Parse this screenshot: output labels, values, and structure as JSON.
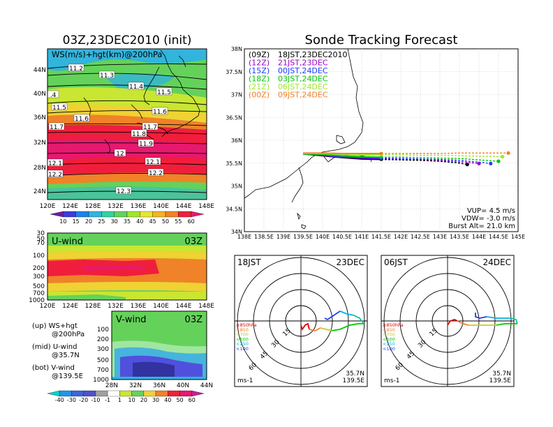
{
  "left_title": "03Z,23DEC2010 (init)",
  "right_title": "Sonde Tracking Forecast",
  "map_panel": {
    "title": "WS(m/s)+hgt(km)@200hPa",
    "lat_labels": [
      "44N",
      "40N",
      "36N",
      "32N",
      "28N",
      "24N"
    ],
    "lon_labels": [
      "120E",
      "124E",
      "128E",
      "132E",
      "136E",
      "140E",
      "144E",
      "148E"
    ],
    "contour_labels": [
      "11.2",
      "11.3",
      "11.4",
      "11.5",
      "11.5",
      "11.6",
      "11.6",
      "11.7",
      "11.7",
      "11.8",
      "11.9",
      "12",
      "12.1",
      "12.1",
      "12.2",
      "12.2",
      "12.3",
      ".4"
    ],
    "colorbar_labels": [
      "10",
      "15",
      "20",
      "25",
      "30",
      "35",
      "40",
      "45",
      "50",
      "55",
      "60"
    ]
  },
  "uwind_panel": {
    "label": "U-wind",
    "time": "03Z",
    "y_labels": [
      "30",
      "50",
      "70",
      "100",
      "200",
      "300",
      "500",
      "700",
      "1000"
    ],
    "x_labels": [
      "120E",
      "124E",
      "128E",
      "132E",
      "136E",
      "140E",
      "144E",
      "148E"
    ]
  },
  "vwind_panel": {
    "label": "V-wind",
    "time": "03Z",
    "y_labels": [
      "100",
      "200",
      "300",
      "500",
      "700",
      "1000"
    ],
    "x_labels": [
      "28N",
      "32N",
      "36N",
      "40N",
      "44N"
    ],
    "colorbar_labels": [
      "-40",
      "-30",
      "-20",
      "-10",
      "-1",
      "1",
      "10",
      "20",
      "30",
      "40",
      "50",
      "60"
    ]
  },
  "legend_notes": {
    "up1": "(up) WS+hgt",
    "up2": "@200hPa",
    "mid1": "(mid) U-wind",
    "mid2": "@35.7N",
    "bot1": "(bot) V-wind",
    "bot2": "@139.5E"
  },
  "track_panel": {
    "lat_labels": [
      "38N",
      "37.5N",
      "37N",
      "36.5N",
      "36N",
      "35.5N",
      "35N",
      "34.5N",
      "34N"
    ],
    "lon_labels": [
      "138E",
      "138.5E",
      "139E",
      "139.5E",
      "140E",
      "140.5E",
      "141E",
      "141.5E",
      "142E",
      "142.5E",
      "143E",
      "143.5E",
      "144E",
      "144.5E",
      "145E"
    ],
    "legend": [
      {
        "code": "(09Z)",
        "time": "18JST,23DEC2010",
        "color": "#000000"
      },
      {
        "code": "(12Z)",
        "time": "21JST,23DEC",
        "color": "#a000c8"
      },
      {
        "code": "(15Z)",
        "time": "00JST,24DEC",
        "color": "#1e3cff"
      },
      {
        "code": "(18Z)",
        "time": "03JST,24DEC",
        "color": "#00c800"
      },
      {
        "code": "(21Z)",
        "time": "06JST,24DEC",
        "color": "#a0e632"
      },
      {
        "code": "(00Z)",
        "time": "09JST,24DEC",
        "color": "#f08228"
      }
    ],
    "params": [
      "VUP= 4.5 m/s",
      "VDW= -3.0 m/s",
      "Burst Alt= 21.0 km"
    ]
  },
  "polar_left": {
    "time": "18JST",
    "date": "23DEC",
    "ring_labels": [
      "15",
      "30",
      "45",
      "60"
    ],
    "units": "ms-1",
    "lat": "35.7N",
    "lon": "139.5E",
    "pressure_legend": [
      "≥850hPa",
      "<850",
      "<700",
      "<500",
      "<250",
      "<100"
    ]
  },
  "polar_right": {
    "time": "06JST",
    "date": "24DEC",
    "ring_labels": [
      "15",
      "30",
      "45",
      "60"
    ],
    "units": "ms-1",
    "lat": "35.7N",
    "lon": "139.5E",
    "pressure_legend": [
      "≥850hPa",
      "<850",
      "<700",
      "<500",
      "<250",
      "<100"
    ]
  },
  "chart_data": [
    {
      "type": "line",
      "title": "Sonde Tracking Forecast",
      "xlabel": "",
      "ylabel": "",
      "xlim": [
        138,
        145
      ],
      "ylim": [
        34,
        38
      ],
      "series": [
        {
          "name": "(09Z) 18JST,23DEC2010",
          "color": "#000000",
          "x": [
            139.5,
            140.0,
            140.5,
            141.0,
            141.5,
            142.0,
            142.5,
            143.0,
            143.5,
            143.7
          ],
          "y": [
            35.7,
            35.66,
            35.62,
            35.59,
            35.58,
            35.57,
            35.56,
            35.54,
            35.5,
            35.47
          ]
        },
        {
          "name": "(12Z) 21JST,23DEC",
          "color": "#a000c8",
          "x": [
            139.5,
            140.0,
            140.5,
            141.0,
            141.5,
            142.0,
            142.5,
            143.0,
            143.5,
            144.0
          ],
          "y": [
            35.7,
            35.67,
            35.63,
            35.61,
            35.6,
            35.59,
            35.58,
            35.56,
            35.53,
            35.49
          ]
        },
        {
          "name": "(15Z) 00JST,24DEC",
          "color": "#1e3cff",
          "x": [
            139.5,
            140.0,
            140.5,
            141.0,
            141.5,
            142.0,
            142.5,
            143.0,
            143.5,
            144.0,
            144.3
          ],
          "y": [
            35.7,
            35.68,
            35.64,
            35.62,
            35.61,
            35.6,
            35.59,
            35.58,
            35.56,
            35.52,
            35.49
          ]
        },
        {
          "name": "(18Z) 03JST,24DEC",
          "color": "#00c800",
          "x": [
            139.5,
            140.0,
            140.5,
            141.0,
            141.5,
            142.0,
            142.5,
            143.0,
            143.5,
            144.0,
            144.5
          ],
          "y": [
            35.7,
            35.69,
            35.66,
            35.64,
            35.63,
            35.63,
            35.62,
            35.61,
            35.6,
            35.57,
            35.54
          ]
        },
        {
          "name": "(21Z) 06JST,24DEC",
          "color": "#a0e632",
          "x": [
            139.5,
            140.0,
            140.5,
            141.0,
            141.5,
            142.0,
            142.5,
            143.0,
            143.5,
            144.0,
            144.6
          ],
          "y": [
            35.71,
            35.71,
            35.69,
            35.68,
            35.68,
            35.68,
            35.67,
            35.67,
            35.66,
            35.65,
            35.64
          ]
        },
        {
          "name": "(00Z) 09JST,24DEC",
          "color": "#f08228",
          "x": [
            139.5,
            140.0,
            140.5,
            141.0,
            141.5,
            142.0,
            142.5,
            143.0,
            143.5,
            144.0,
            144.75
          ],
          "y": [
            35.72,
            35.72,
            35.71,
            35.71,
            35.71,
            35.71,
            35.71,
            35.71,
            35.72,
            35.72,
            35.72
          ]
        }
      ]
    }
  ]
}
